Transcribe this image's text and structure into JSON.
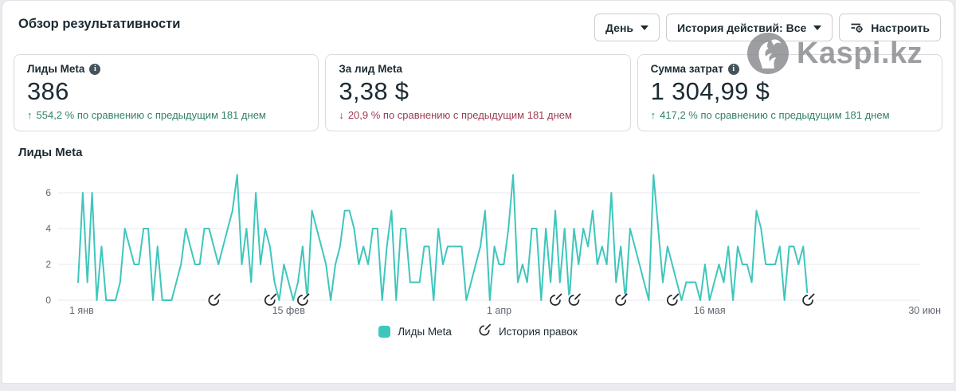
{
  "header": {
    "title": "Обзор результативности",
    "buttons": {
      "period": "День",
      "history": "История действий: Все",
      "customize": "Настроить"
    }
  },
  "watermark": {
    "text": "Kaspi.kz"
  },
  "cards": [
    {
      "label": "Лиды Meta",
      "info_icon": "i",
      "value": "386",
      "delta_arrow": "↑",
      "delta_dir": "up",
      "delta_text": "554,2 % по сравнению с предыдущим 181 днем"
    },
    {
      "label": "За лид Meta",
      "info_icon": "",
      "value": "3,38 $",
      "delta_arrow": "↓",
      "delta_dir": "down",
      "delta_text": "20,9 % по сравнению с предыдущим 181 днем"
    },
    {
      "label": "Сумма затрат",
      "info_icon": "i",
      "value": "1 304,99 $",
      "delta_arrow": "↑",
      "delta_dir": "up",
      "delta_text": "417,2 % по сравнению с предыдущим 181 днем"
    }
  ],
  "colors": {
    "teal": "#3fc6bc",
    "green": "#31816b",
    "red": "#9e3c52",
    "text": "#1c2b33",
    "muted": "#606770"
  },
  "chart_data": {
    "type": "line",
    "title": "Лиды Meta",
    "xlabel": "",
    "ylabel": "",
    "ylim": [
      0,
      7.3
    ],
    "grid": true,
    "x_range_days": 181,
    "y_ticks": [
      0,
      2,
      4,
      6
    ],
    "x_ticks": [
      {
        "day": 0,
        "label": "1 янв"
      },
      {
        "day": 45,
        "label": "15 фев"
      },
      {
        "day": 90,
        "label": "1 апр"
      },
      {
        "day": 135,
        "label": "16 мая"
      },
      {
        "day": 180,
        "label": "30 июн"
      }
    ],
    "series": [
      {
        "name": "Лиды Meta",
        "color": "#3fc6bc",
        "values": [
          1,
          6,
          1,
          6,
          0,
          3,
          0,
          0,
          0,
          1,
          4,
          3,
          2,
          2,
          4,
          4,
          0,
          3,
          0,
          0,
          0,
          1,
          2,
          4,
          3,
          2,
          2,
          4,
          4,
          3,
          2,
          3,
          4,
          5,
          7,
          2,
          4,
          1,
          6,
          2,
          4,
          3,
          1,
          0,
          2,
          1,
          0,
          1,
          3,
          0,
          5,
          4,
          3,
          2,
          0,
          2,
          3,
          5,
          5,
          4,
          2,
          3,
          2,
          4,
          4,
          0,
          3,
          5,
          0,
          4,
          4,
          1,
          1,
          1,
          3,
          3,
          0,
          4,
          2,
          3,
          3,
          3,
          3,
          0,
          1,
          2,
          3,
          5,
          0,
          3,
          2,
          2,
          4,
          7,
          1,
          2,
          1,
          4,
          4,
          0,
          4,
          1,
          5,
          1,
          4,
          0,
          4,
          2,
          4,
          3,
          5,
          2,
          3,
          2,
          6,
          1,
          3,
          0,
          4,
          3,
          2,
          1,
          0,
          7,
          4,
          1,
          3,
          2,
          1,
          0,
          1,
          1,
          1,
          0,
          2,
          0,
          1,
          2,
          1,
          3,
          0,
          3,
          2,
          2,
          1,
          5,
          4,
          2,
          2,
          2,
          3,
          0,
          3,
          3,
          2,
          3,
          0,
          null,
          null,
          null,
          null,
          null,
          null,
          null,
          null,
          null,
          null,
          null,
          null,
          null,
          null,
          null,
          null,
          null,
          null,
          null,
          null,
          null,
          null,
          null,
          null
        ]
      }
    ],
    "edit_marker_days": [
      29,
      41,
      48,
      102,
      106,
      116,
      127,
      156
    ],
    "legend": [
      {
        "type": "swatch",
        "label": "Лиды Meta"
      },
      {
        "type": "edit-icon",
        "label": "История правок"
      }
    ]
  }
}
